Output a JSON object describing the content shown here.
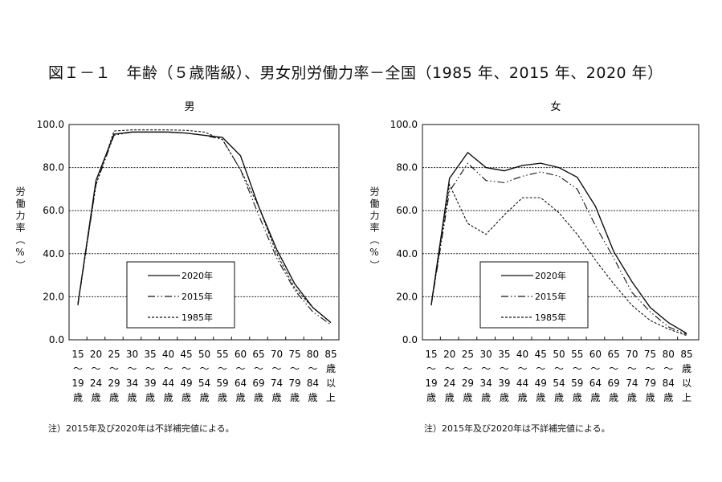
{
  "title": "図Ｉ－１　年齢（５歳階級）、男女別労働力率－全国（1985 年、2015 年、2020 年）",
  "notes": [
    "注）2015年及び2020年は不詳補完値による。",
    "注）2015年及び2020年は不詳補完値による。"
  ],
  "chart_data": [
    {
      "type": "line",
      "title": "男",
      "ylabel": "労働力率（%）",
      "ylim": [
        0,
        100
      ],
      "yticks": [
        "0.0",
        "20.0",
        "40.0",
        "60.0",
        "80.0",
        "100.0"
      ],
      "grid": true,
      "legend": "bottom-center",
      "categories": [
        [
          "15",
          "〜",
          "19",
          "歳"
        ],
        [
          "20",
          "〜",
          "24",
          "歳"
        ],
        [
          "25",
          "〜",
          "29",
          "歳"
        ],
        [
          "30",
          "〜",
          "34",
          "歳"
        ],
        [
          "35",
          "〜",
          "39",
          "歳"
        ],
        [
          "40",
          "〜",
          "44",
          "歳"
        ],
        [
          "45",
          "〜",
          "49",
          "歳"
        ],
        [
          "50",
          "〜",
          "54",
          "歳"
        ],
        [
          "55",
          "〜",
          "59",
          "歳"
        ],
        [
          "60",
          "〜",
          "64",
          "歳"
        ],
        [
          "65",
          "〜",
          "69",
          "歳"
        ],
        [
          "70",
          "〜",
          "74",
          "歳"
        ],
        [
          "75",
          "〜",
          "79",
          "歳"
        ],
        [
          "80",
          "〜",
          "84",
          "歳"
        ],
        [
          "85",
          "歳",
          "以",
          "上"
        ]
      ],
      "series": [
        {
          "name": "2020年",
          "style": "solid",
          "values": [
            16.5,
            74,
            95.5,
            96.5,
            96.5,
            96.5,
            96,
            95,
            94,
            85.5,
            62,
            42,
            26,
            15,
            8
          ]
        },
        {
          "name": "2015年",
          "style": "dashdot",
          "values": [
            16,
            72,
            95,
            96.5,
            96.5,
            96.5,
            96,
            95,
            93,
            79,
            58,
            38,
            23,
            13,
            7
          ]
        },
        {
          "name": "1985年",
          "style": "dashed",
          "values": [
            17,
            72,
            97,
            97.5,
            97.5,
            97.5,
            97.3,
            96.5,
            93,
            79,
            62,
            40,
            24,
            15,
            8
          ]
        }
      ]
    },
    {
      "type": "line",
      "title": "女",
      "ylabel": "労働力率（%）",
      "ylim": [
        0,
        100
      ],
      "yticks": [
        "0.0",
        "20.0",
        "40.0",
        "60.0",
        "80.0",
        "100.0"
      ],
      "grid": true,
      "legend": "bottom-center",
      "categories": [
        [
          "15",
          "〜",
          "19",
          "歳"
        ],
        [
          "20",
          "〜",
          "24",
          "歳"
        ],
        [
          "25",
          "〜",
          "29",
          "歳"
        ],
        [
          "30",
          "〜",
          "34",
          "歳"
        ],
        [
          "35",
          "〜",
          "39",
          "歳"
        ],
        [
          "40",
          "〜",
          "44",
          "歳"
        ],
        [
          "45",
          "〜",
          "49",
          "歳"
        ],
        [
          "50",
          "〜",
          "54",
          "歳"
        ],
        [
          "55",
          "〜",
          "59",
          "歳"
        ],
        [
          "60",
          "〜",
          "64",
          "歳"
        ],
        [
          "65",
          "〜",
          "69",
          "歳"
        ],
        [
          "70",
          "〜",
          "74",
          "歳"
        ],
        [
          "75",
          "〜",
          "79",
          "歳"
        ],
        [
          "80",
          "〜",
          "84",
          "歳"
        ],
        [
          "85",
          "歳",
          "以",
          "上"
        ]
      ],
      "series": [
        {
          "name": "2020年",
          "style": "solid",
          "values": [
            16.5,
            75,
            87,
            80,
            78.5,
            81,
            82,
            80,
            75.5,
            62,
            41,
            27,
            15,
            8,
            3
          ]
        },
        {
          "name": "2015年",
          "style": "dashdot",
          "values": [
            16,
            69,
            82,
            74,
            73,
            76,
            78,
            76,
            70,
            53,
            38,
            22,
            13,
            6,
            2.5
          ]
        },
        {
          "name": "1985年",
          "style": "dashed",
          "values": [
            16,
            72,
            54,
            49,
            58,
            66,
            66,
            59,
            49,
            37,
            26,
            16,
            9,
            5,
            2
          ]
        }
      ]
    }
  ]
}
